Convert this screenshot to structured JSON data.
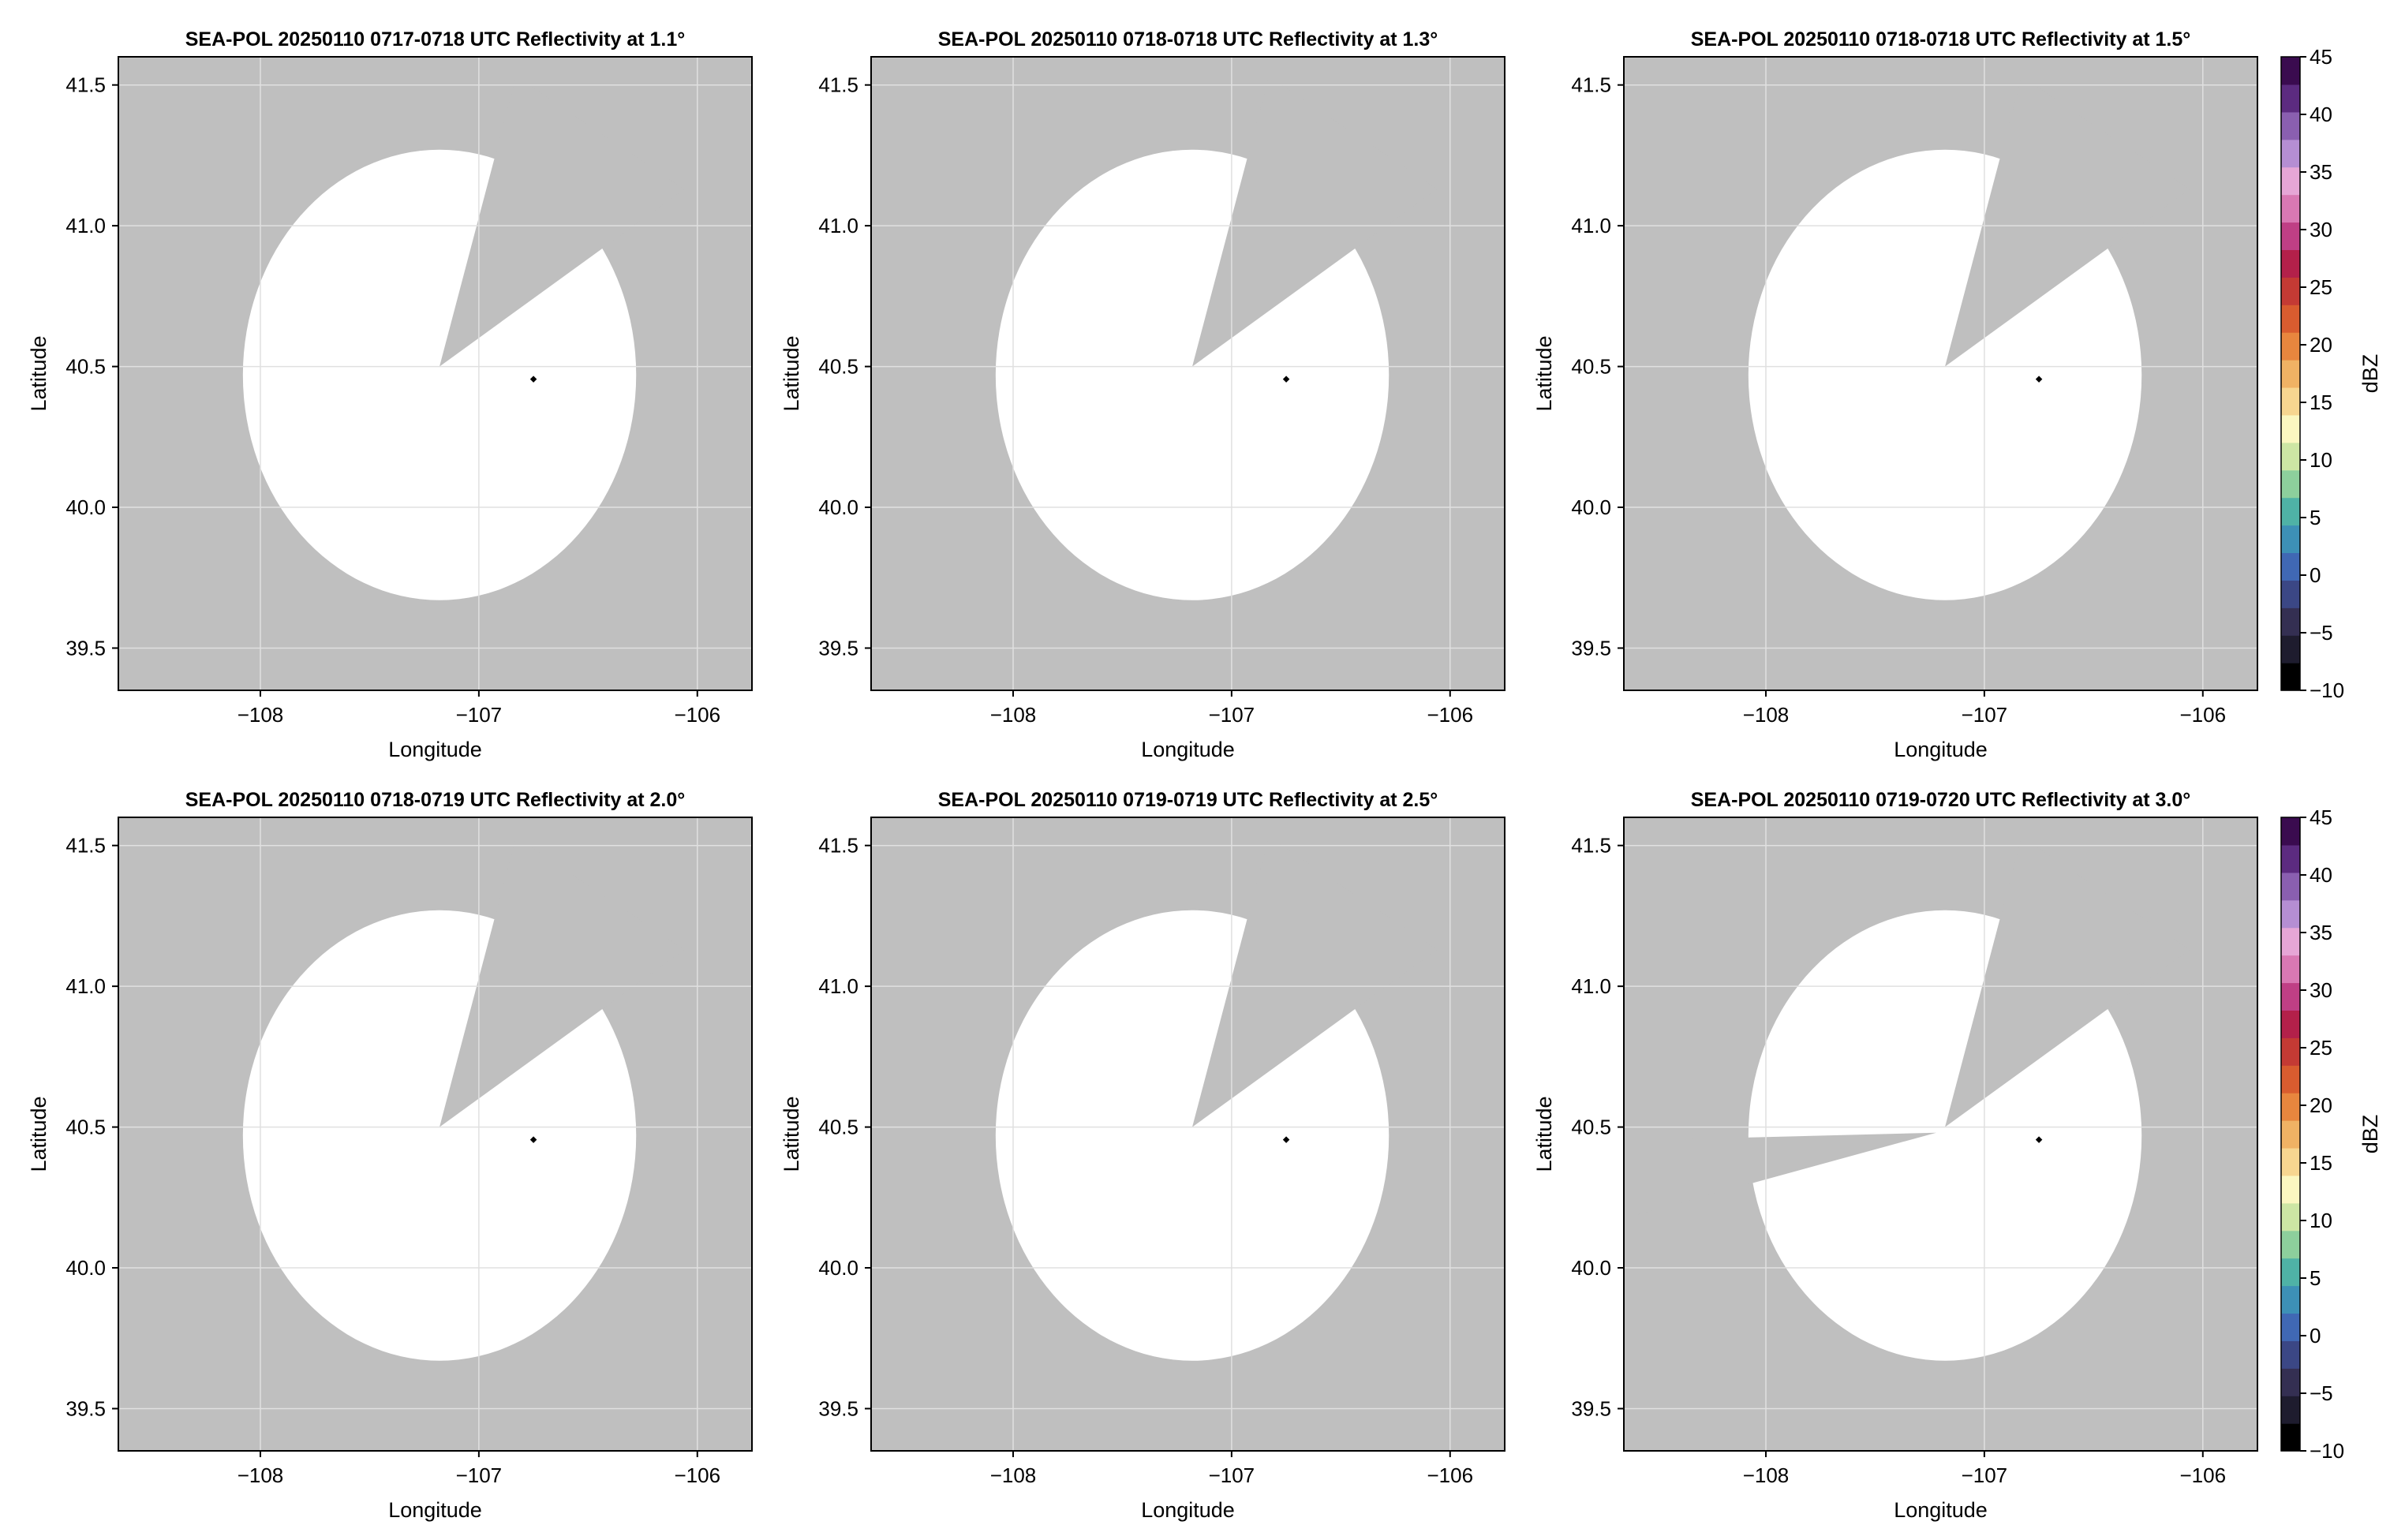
{
  "colors": {
    "no_data_fill": "#bfbfbf",
    "coverage_fill": "#ffffff",
    "grid": "#e0e0e0",
    "radar_marker": "#000000"
  },
  "chart_data": [
    {
      "type": "heatmap",
      "title": "SEA-POL 20250110 0717-0718 UTC Reflectivity at 1.1°",
      "xlabel": "Longitude",
      "ylabel": "Latitude",
      "xlim": [
        -108.65,
        -105.75
      ],
      "ylim": [
        39.35,
        41.6
      ],
      "xticks": [
        -108,
        -107,
        -106
      ],
      "xtick_labels": [
        "−108",
        "−107",
        "−106"
      ],
      "yticks": [
        39.5,
        40.0,
        40.5,
        41.0,
        41.5
      ],
      "ytick_labels": [
        "39.5",
        "40.0",
        "40.5",
        "41.0",
        "41.5"
      ],
      "grid": true,
      "radar_location": [
        -106.75,
        40.455
      ],
      "coverage_center": [
        -107.18,
        40.47
      ],
      "no_data_wedges": [
        [
          [
            -107.18,
            40.5
          ],
          [
            -106.83,
            41.53
          ],
          [
            -106.06,
            41.13
          ]
        ]
      ],
      "values": "all gates empty (no echo)"
    },
    {
      "type": "heatmap",
      "title": "SEA-POL 20250110 0718-0718 UTC Reflectivity at 1.3°",
      "xlabel": "Longitude",
      "ylabel": "Latitude",
      "xlim": [
        -108.65,
        -105.75
      ],
      "ylim": [
        39.35,
        41.6
      ],
      "xticks": [
        -108,
        -107,
        -106
      ],
      "xtick_labels": [
        "−108",
        "−107",
        "−106"
      ],
      "yticks": [
        39.5,
        40.0,
        40.5,
        41.0,
        41.5
      ],
      "ytick_labels": [
        "39.5",
        "40.0",
        "40.5",
        "41.0",
        "41.5"
      ],
      "grid": true,
      "radar_location": [
        -106.75,
        40.455
      ],
      "coverage_center": [
        -107.18,
        40.47
      ],
      "no_data_wedges": [
        [
          [
            -107.18,
            40.5
          ],
          [
            -106.83,
            41.53
          ],
          [
            -106.06,
            41.13
          ]
        ]
      ],
      "values": "all gates empty (no echo)"
    },
    {
      "type": "heatmap",
      "title": "SEA-POL 20250110 0718-0718 UTC Reflectivity at 1.5°",
      "xlabel": "Longitude",
      "ylabel": "Latitude",
      "xlim": [
        -108.65,
        -105.75
      ],
      "ylim": [
        39.35,
        41.6
      ],
      "xticks": [
        -108,
        -107,
        -106
      ],
      "xtick_labels": [
        "−108",
        "−107",
        "−106"
      ],
      "yticks": [
        39.5,
        40.0,
        40.5,
        41.0,
        41.5
      ],
      "ytick_labels": [
        "39.5",
        "40.0",
        "40.5",
        "41.0",
        "41.5"
      ],
      "grid": true,
      "radar_location": [
        -106.75,
        40.455
      ],
      "coverage_center": [
        -107.18,
        40.47
      ],
      "no_data_wedges": [
        [
          [
            -107.18,
            40.5
          ],
          [
            -106.83,
            41.53
          ],
          [
            -106.06,
            41.13
          ]
        ]
      ],
      "values": "all gates empty (no echo)",
      "colorbar": {
        "label": "dBZ",
        "range": [
          -10,
          45
        ],
        "ticks": [
          -10,
          -5,
          0,
          5,
          10,
          15,
          20,
          25,
          30,
          35,
          40,
          45
        ],
        "tick_labels": [
          "−10",
          "−5",
          "0",
          "5",
          "10",
          "15",
          "20",
          "25",
          "30",
          "35",
          "40",
          "45"
        ],
        "colormap": [
          "#000000",
          "#1e1c2e",
          "#342f52",
          "#3b4785",
          "#4068b4",
          "#3d90b6",
          "#4fb2a6",
          "#8dcf9c",
          "#cde6a4",
          "#fbf7c0",
          "#f7d690",
          "#f0b264",
          "#e8863e",
          "#d95c2f",
          "#c43a34",
          "#b3204a",
          "#bf3f85",
          "#d978b3",
          "#e6a6d6",
          "#b58ed3",
          "#8a5fb0",
          "#5c2b80",
          "#3a0b4f"
        ]
      }
    },
    {
      "type": "heatmap",
      "title": "SEA-POL 20250110 0718-0719 UTC Reflectivity at 2.0°",
      "xlabel": "Longitude",
      "ylabel": "Latitude",
      "xlim": [
        -108.65,
        -105.75
      ],
      "ylim": [
        39.35,
        41.6
      ],
      "xticks": [
        -108,
        -107,
        -106
      ],
      "xtick_labels": [
        "−108",
        "−107",
        "−106"
      ],
      "yticks": [
        39.5,
        40.0,
        40.5,
        41.0,
        41.5
      ],
      "ytick_labels": [
        "39.5",
        "40.0",
        "40.5",
        "41.0",
        "41.5"
      ],
      "grid": true,
      "radar_location": [
        -106.75,
        40.455
      ],
      "coverage_center": [
        -107.18,
        40.47
      ],
      "no_data_wedges": [
        [
          [
            -107.18,
            40.5
          ],
          [
            -106.83,
            41.53
          ],
          [
            -106.06,
            41.13
          ]
        ]
      ],
      "values": "all gates empty (no echo)"
    },
    {
      "type": "heatmap",
      "title": "SEA-POL 20250110 0719-0719 UTC Reflectivity at 2.5°",
      "xlabel": "Longitude",
      "ylabel": "Latitude",
      "xlim": [
        -108.65,
        -105.75
      ],
      "ylim": [
        39.35,
        41.6
      ],
      "xticks": [
        -108,
        -107,
        -106
      ],
      "xtick_labels": [
        "−108",
        "−107",
        "−106"
      ],
      "yticks": [
        39.5,
        40.0,
        40.5,
        41.0,
        41.5
      ],
      "ytick_labels": [
        "39.5",
        "40.0",
        "40.5",
        "41.0",
        "41.5"
      ],
      "grid": true,
      "radar_location": [
        -106.75,
        40.455
      ],
      "coverage_center": [
        -107.18,
        40.47
      ],
      "no_data_wedges": [
        [
          [
            -107.18,
            40.5
          ],
          [
            -106.83,
            41.53
          ],
          [
            -106.06,
            41.13
          ]
        ]
      ],
      "values": "all gates empty (no echo)"
    },
    {
      "type": "heatmap",
      "title": "SEA-POL 20250110 0719-0720 UTC Reflectivity at 3.0°",
      "xlabel": "Longitude",
      "ylabel": "Latitude",
      "xlim": [
        -108.65,
        -105.75
      ],
      "ylim": [
        39.35,
        41.6
      ],
      "xticks": [
        -108,
        -107,
        -106
      ],
      "xtick_labels": [
        "−108",
        "−107",
        "−106"
      ],
      "yticks": [
        39.5,
        40.0,
        40.5,
        41.0,
        41.5
      ],
      "ytick_labels": [
        "39.5",
        "40.0",
        "40.5",
        "41.0",
        "41.5"
      ],
      "grid": true,
      "radar_location": [
        -106.75,
        40.455
      ],
      "coverage_center": [
        -107.18,
        40.47
      ],
      "no_data_wedges": [
        [
          [
            -107.18,
            40.5
          ],
          [
            -106.83,
            41.53
          ],
          [
            -106.06,
            41.13
          ]
        ],
        [
          [
            -107.22,
            40.48
          ],
          [
            -108.72,
            40.45
          ],
          [
            -108.63,
            40.18
          ]
        ]
      ],
      "values": "all gates empty (no echo)",
      "colorbar": {
        "label": "dBZ",
        "range": [
          -10,
          45
        ],
        "ticks": [
          -10,
          -5,
          0,
          5,
          10,
          15,
          20,
          25,
          30,
          35,
          40,
          45
        ],
        "tick_labels": [
          "−10",
          "−5",
          "0",
          "5",
          "10",
          "15",
          "20",
          "25",
          "30",
          "35",
          "40",
          "45"
        ],
        "colormap": [
          "#000000",
          "#1e1c2e",
          "#342f52",
          "#3b4785",
          "#4068b4",
          "#3d90b6",
          "#4fb2a6",
          "#8dcf9c",
          "#cde6a4",
          "#fbf7c0",
          "#f7d690",
          "#f0b264",
          "#e8863e",
          "#d95c2f",
          "#c43a34",
          "#b3204a",
          "#bf3f85",
          "#d978b3",
          "#e6a6d6",
          "#b58ed3",
          "#8a5fb0",
          "#5c2b80",
          "#3a0b4f"
        ]
      }
    }
  ]
}
